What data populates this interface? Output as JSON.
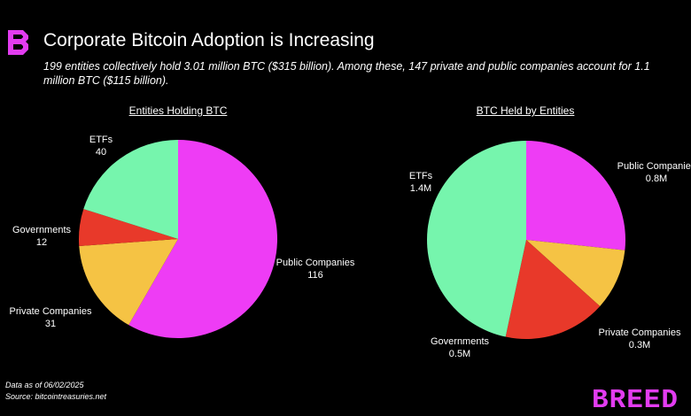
{
  "header": {
    "logo_icon": "breed-b-logo-icon",
    "title": "Corporate Bitcoin Adoption is Increasing",
    "subtitle": "199 entities collectively hold 3.01 million BTC ($315 billion). Among these, 147 private and public companies account for 1.1 million BTC ($115 billion)."
  },
  "footer": {
    "date_note": "Data as of 06/02/2025",
    "source_note": "Source: bitcointreasuries.net",
    "wordmark_icon": "breed-wordmark-logo",
    "wordmark_text": "BREED"
  },
  "colors": {
    "public_companies": "#ee3cf5",
    "private_companies": "#f5c344",
    "governments": "#e8392a",
    "etfs": "#76f5ad",
    "brand": "#e23cf0",
    "background": "#000000"
  },
  "chart_data": [
    {
      "type": "pie",
      "title": "Entities Holding BTC",
      "slices": [
        {
          "label": "Public Companies",
          "value_label": "116",
          "value": 116
        },
        {
          "label": "Private Companies",
          "value_label": "31",
          "value": 31
        },
        {
          "label": "Governments",
          "value_label": "12",
          "value": 12
        },
        {
          "label": "ETFs",
          "value_label": "40",
          "value": 40
        }
      ]
    },
    {
      "type": "pie",
      "title": "BTC Held by Entities",
      "slices": [
        {
          "label": "Public Companies",
          "value_label": "0.8M",
          "value": 0.8
        },
        {
          "label": "Private Companies",
          "value_label": "0.3M",
          "value": 0.3
        },
        {
          "label": "Governments",
          "value_label": "0.5M",
          "value": 0.5
        },
        {
          "label": "ETFs",
          "value_label": "1.4M",
          "value": 1.4
        }
      ]
    }
  ]
}
